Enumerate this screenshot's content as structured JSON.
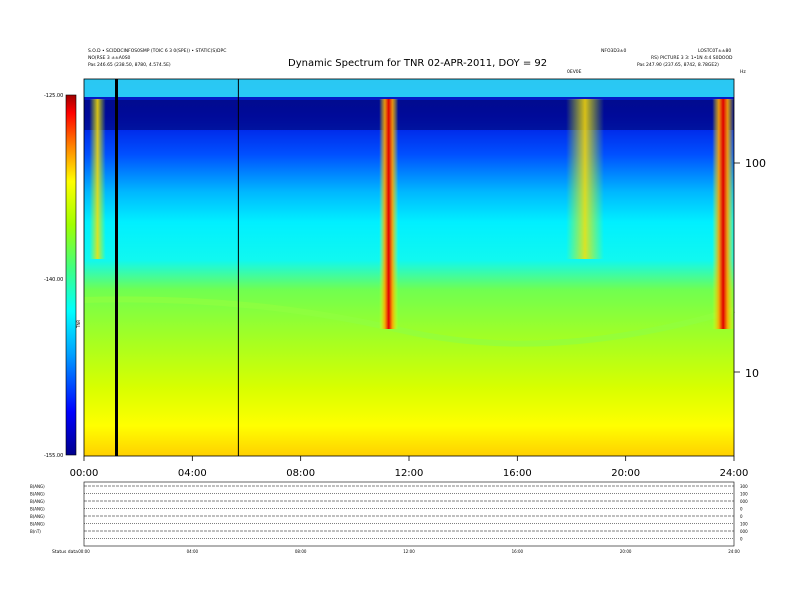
{
  "header": {
    "title": "Dynamic Spectrum for TNR 02-APR-2011, DOY = 92",
    "left_line_1": "S.O.D • SCIDDCINFOS0SMP (TOIC 6 3 0(SPE)) • STATIC(S)DPC",
    "left_line_2": "NO(RSE 3 ±±A0S0",
    "left_line_3": "Pas 246.65 (238.50, 8780, 4.574.5E)",
    "right_line_1": "NFO3D3±0",
    "right_line_2": "LOSTC0T±±80",
    "right_line_3": "RS) PICTURE 3 3: 1•1N 4:4 S0DOOD",
    "right_line_4": "Pas 247.90 (237.65, 8742, 8.78GE2)",
    "right_mark": "0EV0E",
    "corner_mark": "Hz"
  },
  "chart_data": {
    "type": "heatmap",
    "title": "Dynamic Spectrum for TNR 02-APR-2011, DOY = 92",
    "x_tick_labels": [
      "00:00",
      "04:00",
      "08:00",
      "12:00",
      "16:00",
      "20:00",
      "24:00"
    ],
    "xlim_hours": [
      0,
      24
    ],
    "y_scale": "log",
    "y_tick_labels": [
      "100",
      "10"
    ],
    "colorbar": {
      "label": "TNR",
      "tick_labels": [
        "-125.00",
        "-140.00",
        "-155.00"
      ],
      "range": [
        -155,
        -125
      ],
      "colors": [
        "#00008c",
        "#0000ff",
        "#00a0ff",
        "#00ffff",
        "#40ff80",
        "#a0ff00",
        "#ffff00",
        "#ff8000",
        "#ff0000",
        "#a00000"
      ]
    },
    "data_gaps_hours": [
      1.2
    ],
    "vertical_marker_hours": [
      5.7
    ],
    "bursts": [
      {
        "start_hour": 10.9,
        "end_hour": 11.6,
        "level": "strong"
      },
      {
        "start_hour": 23.2,
        "end_hour": 24.0,
        "level": "strong"
      },
      {
        "start_hour": 0.2,
        "end_hour": 0.8,
        "level": "moderate"
      },
      {
        "start_hour": 17.8,
        "end_hour": 19.2,
        "level": "moderate"
      }
    ]
  },
  "bottom_panel": {
    "left_labels": [
      "B(ANG)",
      "B(ANG)",
      "B(ANG)",
      "B(ANG)",
      "B(ANG)",
      "B(ANG)",
      "B(nT)",
      ""
    ],
    "right_labels": [
      "300",
      "100",
      "000",
      "0",
      "0",
      "100",
      "000",
      "0"
    ],
    "x_tick_labels": [
      "00:00",
      "04:00",
      "08:00",
      "12:00",
      "16:00",
      "20:00",
      "24:00"
    ],
    "footer_label": "Status  data"
  }
}
